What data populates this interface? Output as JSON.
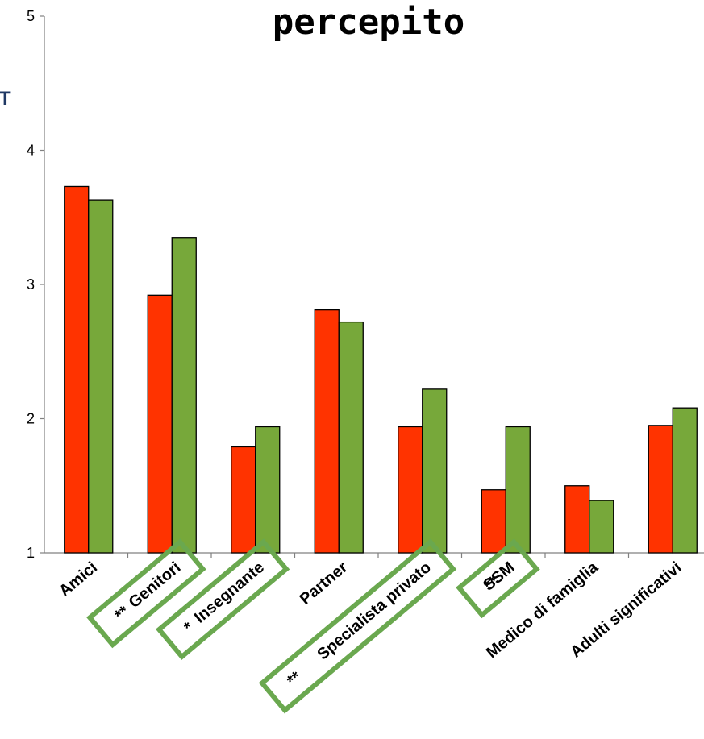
{
  "header": {
    "title": "percepito",
    "side_label": "T"
  },
  "chart_data": {
    "type": "bar",
    "title": "percepito",
    "ylim": [
      1,
      5
    ],
    "yticks": [
      "1",
      "2",
      "3",
      "4",
      "5"
    ],
    "categories": [
      "Amici",
      "Genitori",
      "Insegnante",
      "Partner",
      "Specialista privato",
      "SSM",
      "Medico di famiglia",
      "Adulti significativi"
    ],
    "significance": [
      "",
      "**",
      "*",
      "",
      "**",
      "**",
      "",
      ""
    ],
    "highlighted": [
      false,
      true,
      true,
      false,
      true,
      true,
      false,
      false
    ],
    "series": [
      {
        "color": "#ff3300",
        "values": [
          3.73,
          2.92,
          1.79,
          2.81,
          1.94,
          1.47,
          1.5,
          1.95
        ]
      },
      {
        "color": "#77a83a",
        "values": [
          3.63,
          3.35,
          1.94,
          2.72,
          2.22,
          1.94,
          1.39,
          2.08
        ]
      }
    ],
    "grid": false,
    "legend": "none",
    "highlight_color": "#6aa84f"
  }
}
